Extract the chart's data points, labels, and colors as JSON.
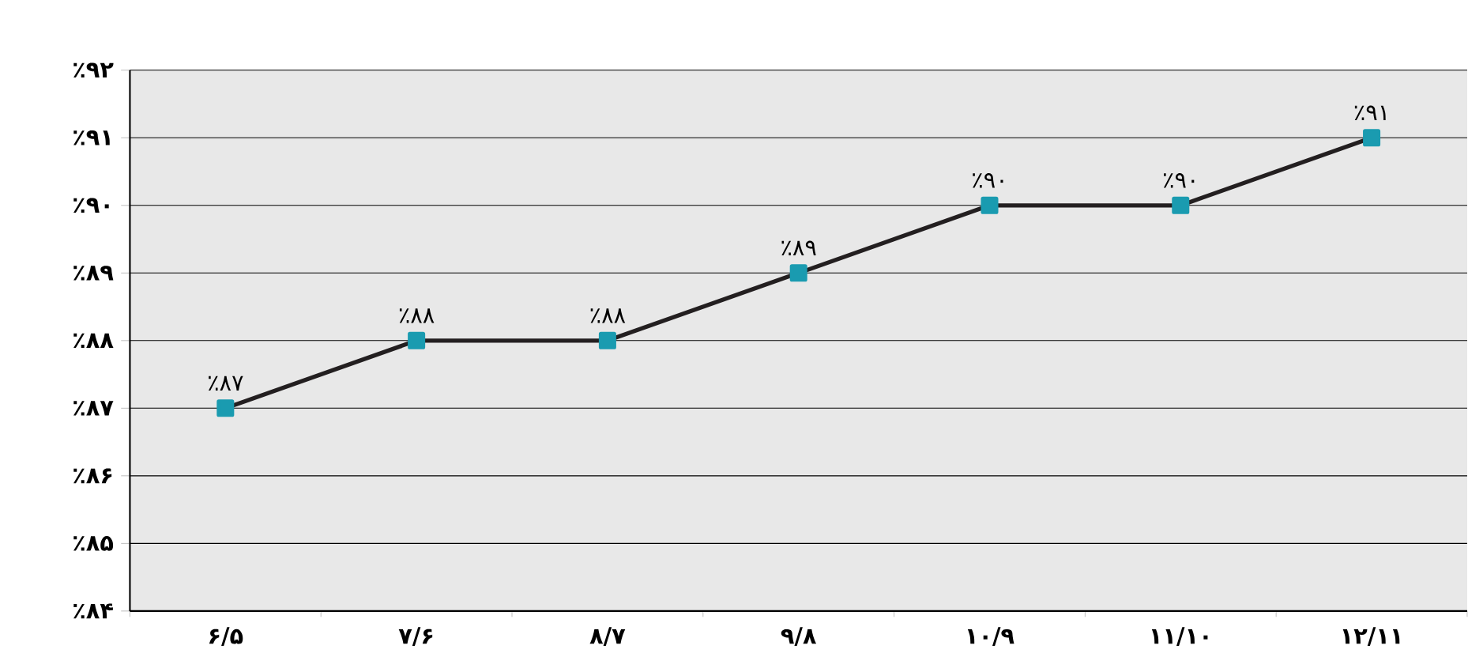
{
  "chart_data": {
    "type": "line",
    "categories": [
      "۶/۵",
      "۷/۶",
      "۸/۷",
      "۹/۸",
      "۱۰/۹",
      "۱۱/۱۰",
      "۱۲/۱۱"
    ],
    "series": [
      {
        "color": "#231f20",
        "values": [
          87,
          88,
          88,
          89,
          90,
          90,
          91
        ],
        "value_labels": [
          "٪۸۷",
          "٪۸۸",
          "٪۸۸",
          "٪۸۹",
          "٪۹۰",
          "٪۹۰",
          "٪۹۱"
        ]
      }
    ],
    "marker": "square",
    "grid": "y",
    "ylim": [
      84,
      92
    ],
    "yticks": [
      {
        "value": 84,
        "label": "٪۸۴"
      },
      {
        "value": 85,
        "label": "٪۸۵"
      },
      {
        "value": 86,
        "label": "٪۸۶"
      },
      {
        "value": 87,
        "label": "٪۸۷"
      },
      {
        "value": 88,
        "label": "٪۸۸"
      },
      {
        "value": 89,
        "label": "٪۸۹"
      },
      {
        "value": 90,
        "label": "٪۹۰"
      },
      {
        "value": 91,
        "label": "٪۹۱"
      },
      {
        "value": 92,
        "label": "٪۹۲"
      }
    ]
  }
}
